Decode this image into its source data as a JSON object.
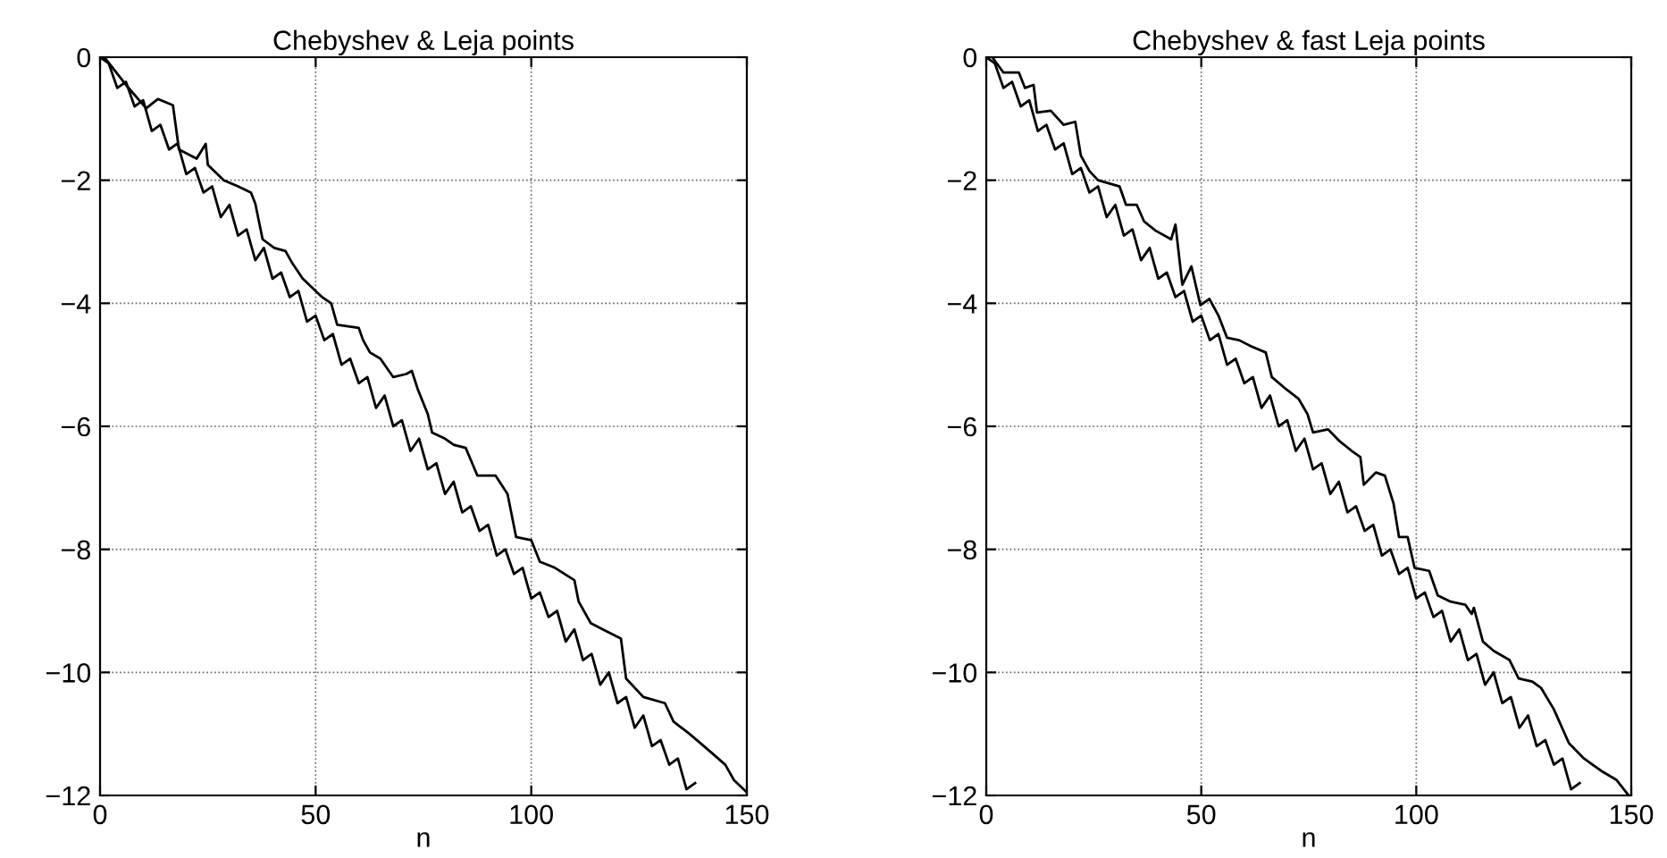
{
  "chart_data": [
    {
      "type": "line",
      "title": "Chebyshev & Leja points",
      "xlabel": "n",
      "xlim": [
        0,
        150
      ],
      "ylim": [
        -12,
        0
      ],
      "xticks": [
        0,
        50,
        100,
        150
      ],
      "yticks": [
        -12,
        -10,
        -8,
        -6,
        -4,
        -2,
        0
      ],
      "grid": true,
      "legend": false,
      "series": [
        {
          "color": "#000000",
          "x": [
            0,
            2,
            4,
            6,
            8,
            10,
            12,
            14,
            16,
            18,
            20,
            22,
            24,
            26,
            28,
            30,
            32,
            34,
            36,
            38,
            40,
            42,
            44,
            46,
            48,
            50,
            52,
            54,
            56,
            58,
            60,
            62,
            64,
            66,
            68,
            70,
            72,
            74,
            76,
            78,
            80,
            82,
            84,
            86,
            88,
            90,
            92,
            94,
            96,
            98,
            100,
            102,
            104,
            106,
            108,
            110,
            112,
            114,
            116,
            118,
            120,
            122,
            124,
            126,
            128,
            130,
            132,
            134,
            136,
            138
          ],
          "values": [
            0.0,
            -0.1,
            -0.5,
            -0.4,
            -0.8,
            -0.7,
            -1.2,
            -1.1,
            -1.5,
            -1.4,
            -1.9,
            -1.8,
            -2.2,
            -2.1,
            -2.6,
            -2.4,
            -2.9,
            -2.8,
            -3.3,
            -3.1,
            -3.6,
            -3.5,
            -3.9,
            -3.8,
            -4.3,
            -4.2,
            -4.6,
            -4.5,
            -5.0,
            -4.9,
            -5.3,
            -5.2,
            -5.7,
            -5.5,
            -6.0,
            -5.9,
            -6.4,
            -6.2,
            -6.7,
            -6.6,
            -7.1,
            -6.9,
            -7.4,
            -7.3,
            -7.7,
            -7.6,
            -8.1,
            -8.0,
            -8.4,
            -8.3,
            -8.8,
            -8.7,
            -9.1,
            -9.0,
            -9.5,
            -9.3,
            -9.8,
            -9.7,
            -10.2,
            -10.0,
            -10.5,
            -10.4,
            -10.9,
            -10.7,
            -11.2,
            -11.1,
            -11.5,
            -11.4,
            -11.9,
            -11.8
          ]
        },
        {
          "color": "#000000",
          "x": [
            1,
            6,
            10.7,
            13.4,
            16.9,
            18.3,
            22.4,
            24.5,
            25,
            28.7,
            32,
            35,
            36,
            37.7,
            40.4,
            43,
            44.6,
            47,
            51.5,
            53.6,
            55,
            60,
            61,
            62.6,
            65,
            68,
            71,
            72.3,
            73.7,
            76,
            77,
            80,
            82,
            84.8,
            87.5,
            91.7,
            94.5,
            96.5,
            100,
            102,
            105.5,
            110,
            111,
            113.8,
            116.6,
            120.8,
            122,
            126,
            131,
            133,
            136.7,
            140.9,
            145,
            147,
            150
          ],
          "values": [
            0,
            -0.45,
            -0.83,
            -0.68,
            -0.78,
            -1.5,
            -1.65,
            -1.41,
            -1.75,
            -2.0,
            -2.1,
            -2.2,
            -2.38,
            -2.96,
            -3.1,
            -3.15,
            -3.35,
            -3.6,
            -3.9,
            -4.0,
            -4.35,
            -4.4,
            -4.6,
            -4.8,
            -4.9,
            -5.2,
            -5.15,
            -5.1,
            -5.4,
            -5.8,
            -6.1,
            -6.2,
            -6.3,
            -6.35,
            -6.8,
            -6.8,
            -7.1,
            -7.8,
            -7.85,
            -8.2,
            -8.3,
            -8.5,
            -8.85,
            -9.2,
            -9.3,
            -9.45,
            -10.1,
            -10.4,
            -10.5,
            -10.8,
            -11.0,
            -11.25,
            -11.5,
            -11.75,
            -11.95
          ]
        }
      ]
    },
    {
      "type": "line",
      "title": "Chebyshev & fast Leja points",
      "xlabel": "n",
      "xlim": [
        0,
        150
      ],
      "ylim": [
        -12,
        0
      ],
      "xticks": [
        0,
        50,
        100,
        150
      ],
      "yticks": [
        -12,
        -10,
        -8,
        -6,
        -4,
        -2,
        0
      ],
      "grid": true,
      "legend": false,
      "series": [
        {
          "color": "#000000",
          "x": [
            0,
            2,
            4,
            6,
            8,
            10,
            12,
            14,
            16,
            18,
            20,
            22,
            24,
            26,
            28,
            30,
            32,
            34,
            36,
            38,
            40,
            42,
            44,
            46,
            48,
            50,
            52,
            54,
            56,
            58,
            60,
            62,
            64,
            66,
            68,
            70,
            72,
            74,
            76,
            78,
            80,
            82,
            84,
            86,
            88,
            90,
            92,
            94,
            96,
            98,
            100,
            102,
            104,
            106,
            108,
            110,
            112,
            114,
            116,
            118,
            120,
            122,
            124,
            126,
            128,
            130,
            132,
            134,
            136,
            138
          ],
          "values": [
            0.0,
            -0.1,
            -0.5,
            -0.4,
            -0.8,
            -0.7,
            -1.2,
            -1.1,
            -1.5,
            -1.4,
            -1.9,
            -1.8,
            -2.2,
            -2.1,
            -2.6,
            -2.4,
            -2.9,
            -2.8,
            -3.3,
            -3.1,
            -3.6,
            -3.5,
            -3.9,
            -3.8,
            -4.3,
            -4.2,
            -4.6,
            -4.5,
            -5.0,
            -4.9,
            -5.3,
            -5.2,
            -5.7,
            -5.5,
            -6.0,
            -5.9,
            -6.4,
            -6.2,
            -6.7,
            -6.6,
            -7.1,
            -6.9,
            -7.4,
            -7.3,
            -7.7,
            -7.6,
            -8.1,
            -8.0,
            -8.4,
            -8.3,
            -8.8,
            -8.7,
            -9.1,
            -9.0,
            -9.5,
            -9.3,
            -9.8,
            -9.7,
            -10.2,
            -10.0,
            -10.5,
            -10.4,
            -10.9,
            -10.7,
            -11.2,
            -11.1,
            -11.5,
            -11.4,
            -11.9,
            -11.8
          ]
        },
        {
          "color": "#000000",
          "x": [
            1.4,
            4,
            7.6,
            9,
            11,
            11.8,
            15,
            18,
            20.7,
            22,
            24,
            26,
            31,
            32.5,
            35,
            36.7,
            39.4,
            43,
            44,
            45.6,
            47.7,
            49.8,
            51.9,
            54,
            56,
            58.8,
            61.6,
            65,
            66.4,
            69.8,
            72.6,
            74.7,
            76,
            79.5,
            82.3,
            85,
            87,
            87.8,
            90.6,
            92.7,
            94.7,
            96,
            98,
            99.6,
            103,
            105,
            108,
            111.4,
            112.9,
            113.4,
            115.5,
            118,
            121.7,
            123.8,
            127,
            129,
            132,
            135.5,
            139,
            143,
            146.6,
            149.4
          ],
          "values": [
            0,
            -0.25,
            -0.25,
            -0.5,
            -0.45,
            -0.9,
            -0.87,
            -1.1,
            -1.05,
            -1.6,
            -1.85,
            -2.0,
            -2.1,
            -2.4,
            -2.4,
            -2.67,
            -2.82,
            -2.96,
            -2.72,
            -3.7,
            -3.4,
            -4.03,
            -3.93,
            -4.2,
            -4.56,
            -4.6,
            -4.7,
            -4.8,
            -5.2,
            -5.4,
            -5.55,
            -5.8,
            -6.1,
            -6.05,
            -6.25,
            -6.4,
            -6.5,
            -6.95,
            -6.75,
            -6.8,
            -7.25,
            -7.8,
            -7.8,
            -8.3,
            -8.35,
            -8.75,
            -8.85,
            -8.9,
            -9.05,
            -8.95,
            -9.5,
            -9.65,
            -9.8,
            -10.1,
            -10.15,
            -10.25,
            -10.6,
            -11.15,
            -11.4,
            -11.6,
            -11.75,
            -12.0
          ]
        }
      ]
    }
  ]
}
